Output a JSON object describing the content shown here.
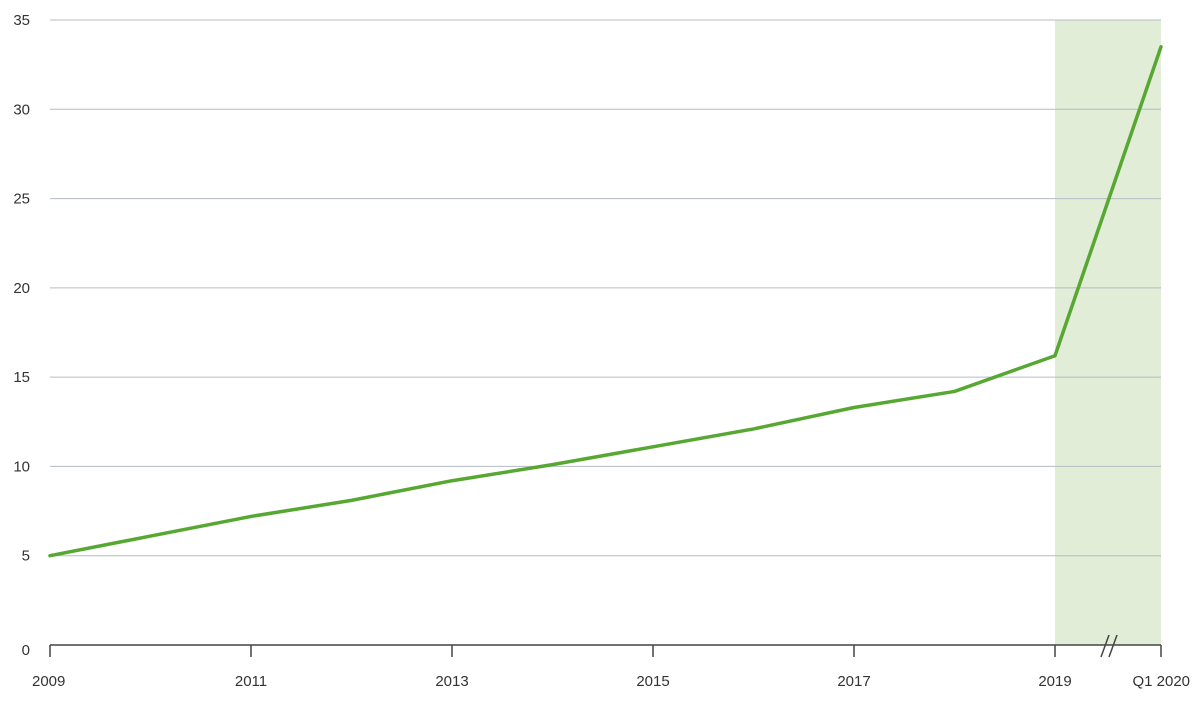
{
  "chart_data": {
    "type": "line",
    "title": "",
    "xlabel": "",
    "ylabel": "",
    "ylim": [
      0,
      35
    ],
    "yticks": [
      0,
      5,
      10,
      15,
      20,
      25,
      30,
      35
    ],
    "x_ticks": [
      {
        "label": "2009",
        "x": 2009
      },
      {
        "label": "2011",
        "x": 2011
      },
      {
        "label": "2013",
        "x": 2013
      },
      {
        "label": "2015",
        "x": 2015
      },
      {
        "label": "2017",
        "x": 2017
      },
      {
        "label": "2019",
        "x": 2019
      },
      {
        "label": "Q1 2020",
        "x": 2020
      }
    ],
    "x_scale_break": {
      "after": 2019,
      "before": "Q1 2020"
    },
    "highlight_range": {
      "from": 2019,
      "to": "Q1 2020",
      "color": "#e1edd7"
    },
    "series": [
      {
        "color": "#57a733",
        "points": [
          {
            "x": 2009,
            "y": 5.0
          },
          {
            "x": 2010,
            "y": 6.1
          },
          {
            "x": 2011,
            "y": 7.2
          },
          {
            "x": 2012,
            "y": 8.1
          },
          {
            "x": 2013,
            "y": 9.2
          },
          {
            "x": 2014,
            "y": 10.1
          },
          {
            "x": 2015,
            "y": 11.1
          },
          {
            "x": 2016,
            "y": 12.1
          },
          {
            "x": 2017,
            "y": 13.3
          },
          {
            "x": 2018,
            "y": 14.2
          },
          {
            "x": 2019,
            "y": 16.2
          },
          {
            "x": "Q1 2020",
            "y": 33.5
          }
        ]
      }
    ],
    "gridlines": true,
    "colors": {
      "grid": "#b6bcc4",
      "axis": "#444444",
      "text": "#333333"
    }
  }
}
